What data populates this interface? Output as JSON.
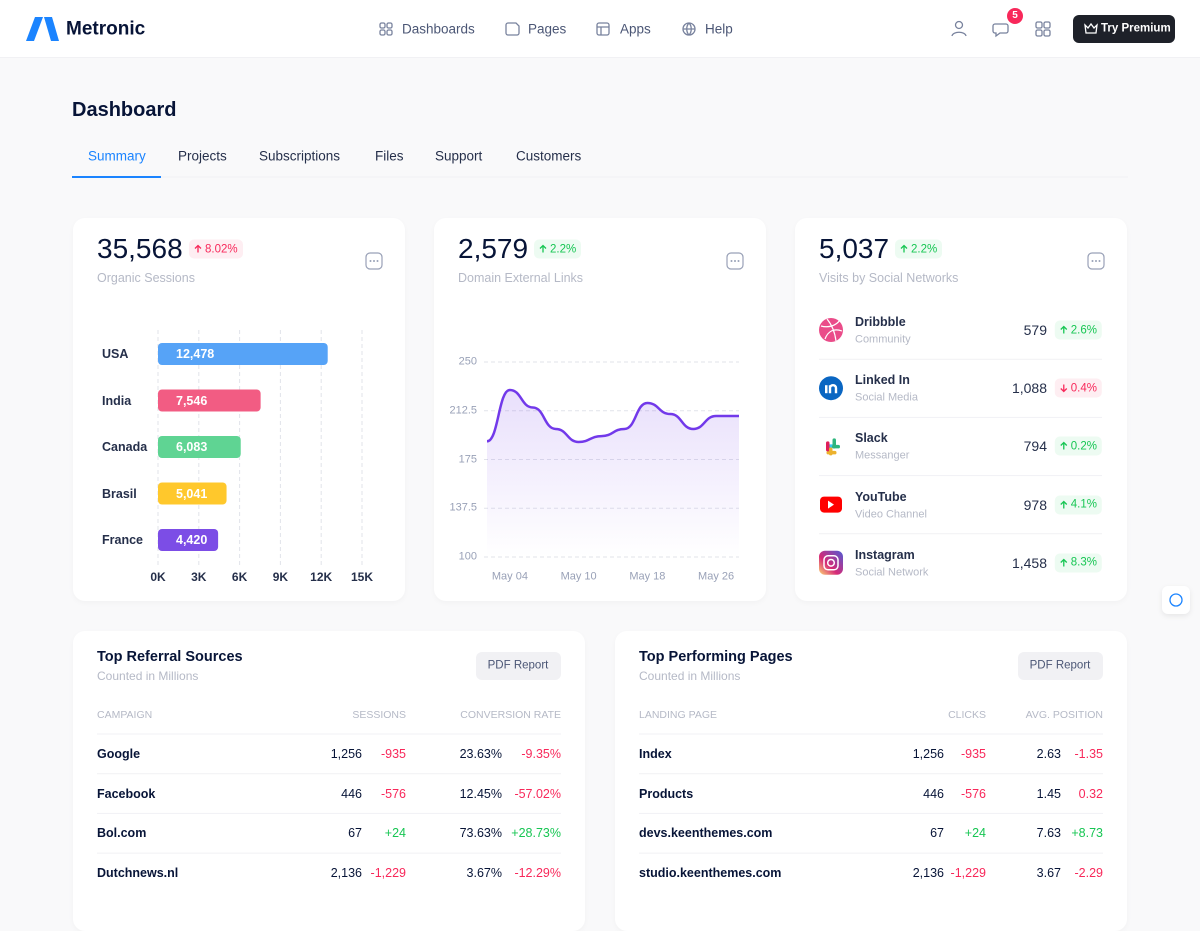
{
  "nav": {
    "brand": "Metronic",
    "menu": [
      "Dashboards",
      "Pages",
      "Apps",
      "Help"
    ],
    "notifications": 5,
    "premium": "Try Premium"
  },
  "page": {
    "title": "Dashboard",
    "tabs": [
      "Summary",
      "Projects",
      "Subscriptions",
      "Files",
      "Support",
      "Customers"
    ],
    "active_tab": 0
  },
  "stats": [
    {
      "value": "35,568",
      "change": "8.02%",
      "trend": "up",
      "color": "#f8285a",
      "label": "Organic Sessions"
    },
    {
      "value": "2,579",
      "change": "2.2%",
      "trend": "up",
      "color": "#17c653",
      "label": "Domain External Links"
    },
    {
      "value": "5,037",
      "change": "2.2%",
      "trend": "up",
      "color": "#17c653",
      "label": "Visits by Social Networks"
    }
  ],
  "bar_chart": {
    "type": "bar",
    "orientation": "horizontal",
    "categories": [
      "USA",
      "India",
      "Canada",
      "Brasil",
      "France"
    ],
    "values": [
      12478,
      7546,
      6083,
      5041,
      4420
    ],
    "value_labels": [
      "12,478",
      "7,546",
      "6,083",
      "5,041",
      "4,420"
    ],
    "colors": [
      "#56a3f7",
      "#f25c83",
      "#5fd493",
      "#ffc82c",
      "#7c4de6"
    ],
    "xlim": [
      0,
      15000
    ],
    "xticks": [
      {
        "value": 0,
        "label": "0K"
      },
      {
        "value": 3000,
        "label": "3K"
      },
      {
        "value": 6000,
        "label": "6K"
      },
      {
        "value": 9000,
        "label": "9K"
      },
      {
        "value": 12000,
        "label": "12K"
      },
      {
        "value": 15000,
        "label": "15K"
      }
    ],
    "grid": true
  },
  "line_chart": {
    "type": "line",
    "categories": [
      null,
      "May 04",
      null,
      null,
      "May 10",
      null,
      null,
      "May 18",
      null,
      null,
      "May 26",
      null
    ],
    "values": [
      189,
      228.5,
      215,
      198.5,
      188.5,
      193,
      198.5,
      218.5,
      210,
      198.5,
      208.5,
      208.5
    ],
    "color": "#7239ea",
    "ylim": [
      100,
      250
    ],
    "yticks": [
      100,
      137.5,
      175,
      212.5,
      250
    ],
    "grid": true
  },
  "social": [
    {
      "name": "Dribbble",
      "sub": "Community",
      "value": "579",
      "change": "2.6%",
      "trend": "up",
      "color": "#17c653"
    },
    {
      "name": "Linked In",
      "sub": "Social Media",
      "value": "1,088",
      "change": "0.4%",
      "trend": "down",
      "color": "#f8285a"
    },
    {
      "name": "Slack",
      "sub": "Messanger",
      "value": "794",
      "change": "0.2%",
      "trend": "up",
      "color": "#17c653"
    },
    {
      "name": "YouTube",
      "sub": "Video Channel",
      "value": "978",
      "change": "4.1%",
      "trend": "up",
      "color": "#17c653"
    },
    {
      "name": "Instagram",
      "sub": "Social Network",
      "value": "1,458",
      "change": "8.3%",
      "trend": "up",
      "color": "#17c653"
    }
  ],
  "tables": [
    {
      "title": "Top Referral Sources",
      "subtitle": "Counted in Millions",
      "button": "PDF Report",
      "columns": [
        "CAMPAIGN",
        "SESSIONS",
        "CONVERSION RATE"
      ],
      "rows": [
        [
          "Google",
          "1,256",
          "-935",
          "23.63%",
          "-9.35%"
        ],
        [
          "Facebook",
          "446",
          "-576",
          "12.45%",
          "-57.02%"
        ],
        [
          "Bol.com",
          "67",
          "+24",
          "73.63%",
          "+28.73%"
        ],
        [
          "Dutchnews.nl",
          "2,136",
          "-1,229",
          "3.67%",
          "-12.29%"
        ]
      ]
    },
    {
      "title": "Top Performing Pages",
      "subtitle": "Counted in Millions",
      "button": "PDF Report",
      "columns": [
        "LANDING PAGE",
        "CLICKS",
        "AVG. POSITION"
      ],
      "rows": [
        [
          "Index",
          "1,256",
          "-935",
          "2.63",
          "-1.35"
        ],
        [
          "Products",
          "446",
          "-576",
          "1.45",
          "0.32"
        ],
        [
          "devs.keenthemes.com",
          "67",
          "+24",
          "7.63",
          "+8.73"
        ],
        [
          "studio.keenthemes.com",
          "2,136",
          "-1,229",
          "3.67",
          "-2.29"
        ]
      ]
    }
  ]
}
